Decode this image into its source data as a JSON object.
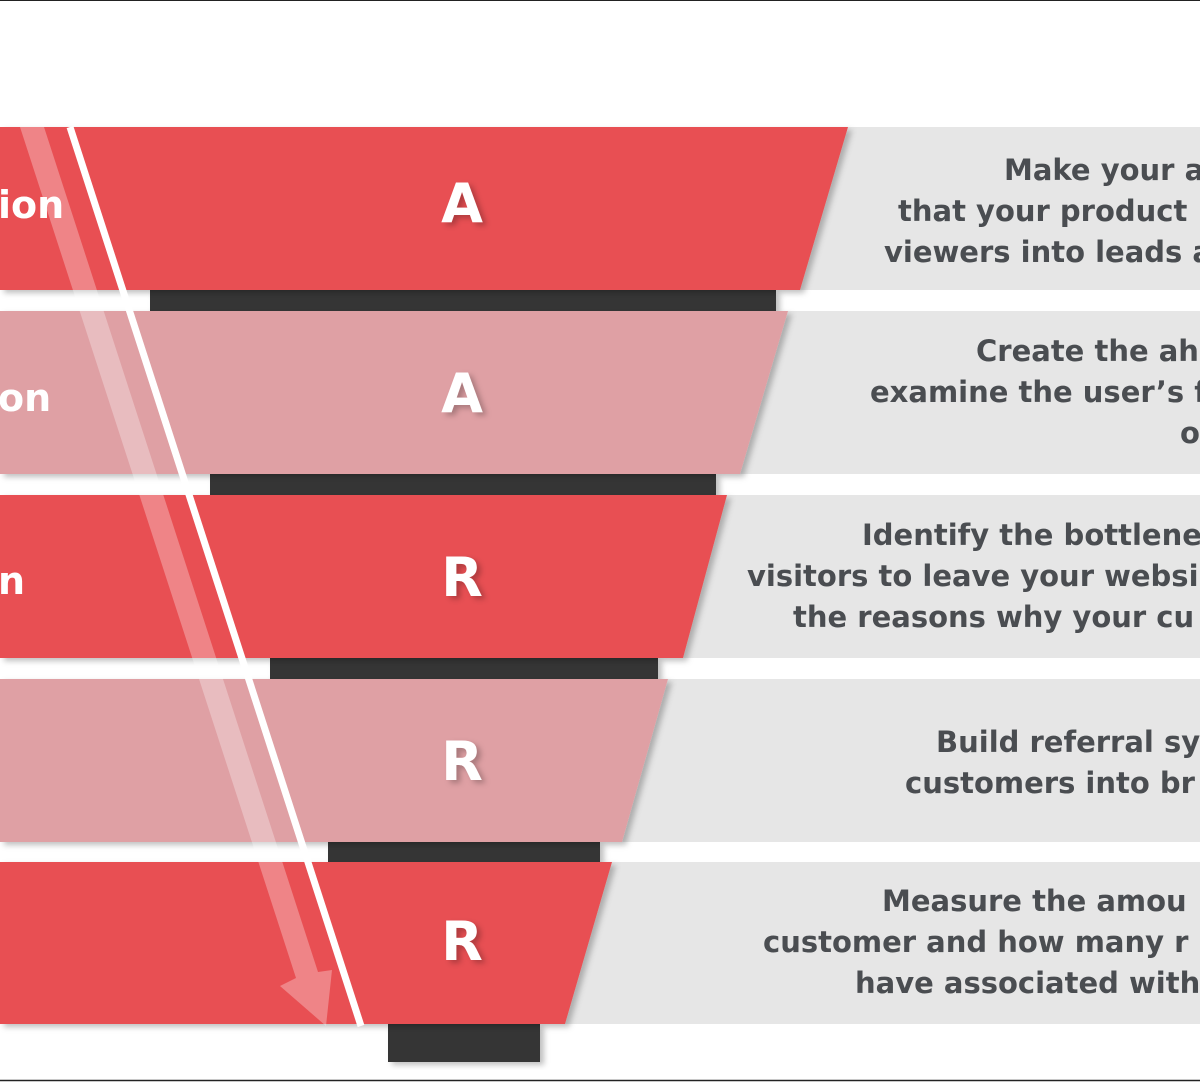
{
  "colors": {
    "strong": "#e85052",
    "light": "#dfa0a4",
    "stem": "#353535",
    "panel": "#e6e6e6",
    "text": "#4a4d51"
  },
  "stages": [
    {
      "letter": "A",
      "left_label": "ion",
      "tone": "strong",
      "description": [
        "Make your a",
        "that your product",
        "viewers into leads a"
      ]
    },
    {
      "letter": "A",
      "left_label": "on",
      "tone": "light",
      "description": [
        "Create the ah",
        "examine the user’s f",
        "o"
      ]
    },
    {
      "letter": "R",
      "left_label": "n",
      "tone": "strong",
      "description": [
        "Identify the bottlene",
        "visitors to leave your websi",
        "the reasons why your cu"
      ]
    },
    {
      "letter": "R",
      "left_label": "",
      "tone": "light",
      "description": [
        "Build referral sy",
        "customers into br"
      ]
    },
    {
      "letter": "R",
      "left_label": "",
      "tone": "strong",
      "description": [
        "Measure the amou",
        "customer and how many r",
        "have associated with"
      ]
    }
  ]
}
